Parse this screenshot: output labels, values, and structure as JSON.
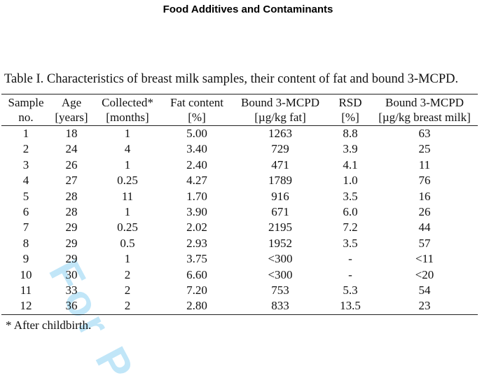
{
  "journal_header": "Food Additives and Contaminants",
  "watermark_text": "For P",
  "table": {
    "caption": "Table I. Characteristics of breast milk samples, their content of fat and bound 3-MCPD.",
    "header_row1": [
      "Sample",
      "Age",
      "Collected*",
      "Fat content",
      "Bound 3-MCPD",
      "RSD",
      "Bound 3-MCPD"
    ],
    "header_row2": [
      "no.",
      "[years]",
      "[months]",
      "[%]",
      "[µg/kg fat]",
      "[%]",
      "[µg/kg breast milk]"
    ],
    "rows": [
      [
        "1",
        "18",
        "1",
        "5.00",
        "1263",
        "8.8",
        "63"
      ],
      [
        "2",
        "24",
        "4",
        "3.40",
        "729",
        "3.9",
        "25"
      ],
      [
        "3",
        "26",
        "1",
        "2.40",
        "471",
        "4.1",
        "11"
      ],
      [
        "4",
        "27",
        "0.25",
        "4.27",
        "1789",
        "1.0",
        "76"
      ],
      [
        "5",
        "28",
        "11",
        "1.70",
        "916",
        "3.5",
        "16"
      ],
      [
        "6",
        "28",
        "1",
        "3.90",
        "671",
        "6.0",
        "26"
      ],
      [
        "7",
        "29",
        "0.25",
        "2.02",
        "2195",
        "7.2",
        "44"
      ],
      [
        "8",
        "29",
        "0.5",
        "2.93",
        "1952",
        "3.5",
        "57"
      ],
      [
        "9",
        "29",
        "1",
        "3.75",
        "<300",
        "-",
        "<11"
      ],
      [
        "10",
        "30",
        "2",
        "6.60",
        "<300",
        "-",
        "<20"
      ],
      [
        "11",
        "33",
        "2",
        "7.20",
        "753",
        "5.3",
        "54"
      ],
      [
        "12",
        "36",
        "2",
        "2.80",
        "833",
        "13.5",
        "23"
      ]
    ],
    "footnote": "* After childbirth."
  },
  "colors": {
    "text": "#111111",
    "watermark": "#8fd3f4"
  }
}
